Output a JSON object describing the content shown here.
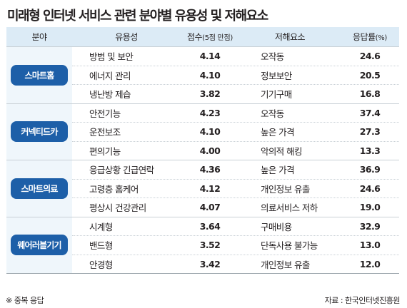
{
  "title": "미래형 인터넷 서비스 관련 분야별 유용성 및 저해요소",
  "headers": {
    "category": "분야",
    "usefulness": "유용성",
    "score": "점수",
    "score_unit": "(5점 만점)",
    "obstacle": "저해요소",
    "rate": "응답률",
    "rate_unit": "(%)"
  },
  "groups": [
    {
      "category": "스마트홈",
      "rows": [
        {
          "use": "방범 및 보안",
          "score": "4.14",
          "obstacle": "오작동",
          "rate": "24.6"
        },
        {
          "use": "에너지 관리",
          "score": "4.10",
          "obstacle": "정보보안",
          "rate": "20.5"
        },
        {
          "use": "냉난방 제습",
          "score": "3.82",
          "obstacle": "기기구매",
          "rate": "16.8"
        }
      ]
    },
    {
      "category": "커넥티드카",
      "rows": [
        {
          "use": "안전기능",
          "score": "4.23",
          "obstacle": "오작동",
          "rate": "37.4"
        },
        {
          "use": "운전보조",
          "score": "4.10",
          "obstacle": "높은 가격",
          "rate": "27.3"
        },
        {
          "use": "편의기능",
          "score": "4.00",
          "obstacle": "악의적 해킹",
          "rate": "13.3"
        }
      ]
    },
    {
      "category": "스마트의료",
      "rows": [
        {
          "use": "응급상황 긴급연락",
          "score": "4.36",
          "obstacle": "높은 가격",
          "rate": "36.9"
        },
        {
          "use": "고령층 홈케어",
          "score": "4.12",
          "obstacle": "개인정보 유출",
          "rate": "24.6"
        },
        {
          "use": "평상시 건강관리",
          "score": "4.07",
          "obstacle": "의료서비스 저하",
          "rate": "19.0"
        }
      ]
    },
    {
      "category": "웨어러블기기",
      "rows": [
        {
          "use": "시계형",
          "score": "3.64",
          "obstacle": "구매비용",
          "rate": "32.9"
        },
        {
          "use": "밴드형",
          "score": "3.52",
          "obstacle": "단독사용 불가능",
          "rate": "13.0"
        },
        {
          "use": "안경형",
          "score": "3.42",
          "obstacle": "개인정보 유출",
          "rate": "12.0"
        }
      ]
    }
  ],
  "footnote": "※ 중복 응답",
  "source": "자료 : 한국인터넷진흥원"
}
